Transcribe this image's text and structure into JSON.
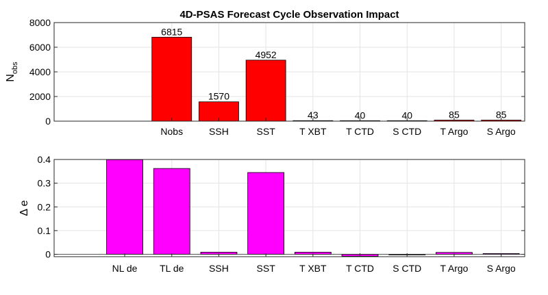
{
  "chart_data": [
    {
      "type": "bar",
      "title": "4D-PSAS Forecast Cycle Observation Impact",
      "categories": [
        "Nobs",
        "SSH",
        "SST",
        "T XBT",
        "T CTD",
        "S CTD",
        "T Argo",
        "S Argo"
      ],
      "values": [
        6815,
        1570,
        4952,
        43,
        40,
        40,
        85,
        85
      ],
      "data_labels": [
        "6815",
        "1570",
        "4952",
        "43",
        "40",
        "40",
        "85",
        "85"
      ],
      "ylabel_main": "N",
      "ylabel_sub": "obs",
      "ylim": [
        0,
        8000
      ],
      "yticks": [
        0,
        2000,
        4000,
        6000,
        8000
      ],
      "ytick_labels": [
        "0",
        "2000",
        "4000",
        "6000",
        "8000"
      ],
      "xlim": [
        -1.5,
        8.5
      ],
      "grid": true,
      "color": "#ff0000"
    },
    {
      "type": "bar",
      "title": "",
      "categories": [
        "NL de",
        "TL de",
        "SSH",
        "SST",
        "T XBT",
        "T CTD",
        "S CTD",
        "T Argo",
        "S Argo"
      ],
      "values": [
        0.399,
        0.362,
        0.009,
        0.345,
        0.009,
        -0.008,
        -0.002,
        0.008,
        0.003
      ],
      "ylabel_main": "Δ e",
      "ylim": [
        -0.01,
        0.4
      ],
      "yticks": [
        0,
        0.1,
        0.2,
        0.3,
        0.4
      ],
      "ytick_labels": [
        "0",
        "0.1",
        "0.2",
        "0.3",
        "0.4"
      ],
      "xlim": [
        -0.5,
        9.5
      ],
      "grid": true,
      "color": "#ff00ff"
    }
  ]
}
